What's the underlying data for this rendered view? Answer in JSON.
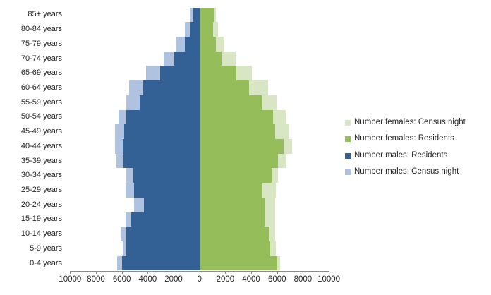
{
  "chart_data": {
    "type": "bar",
    "subtype": "population-pyramid",
    "title": "",
    "xlabel": "",
    "ylabel": "",
    "grid": false,
    "legend_position": "right",
    "axis_max_each_side": 10000,
    "x_tick_labels": [
      "10000",
      "8000",
      "6000",
      "4000",
      "2000",
      "0",
      "2000",
      "4000",
      "6000",
      "8000",
      "10000"
    ],
    "x_tick_values": [
      -10000,
      -8000,
      -6000,
      -4000,
      -2000,
      0,
      2000,
      4000,
      6000,
      8000,
      10000
    ],
    "categories_top_to_bottom": [
      "85+ years",
      "80-84 years",
      "75-79 years",
      "70-74 years",
      "65-69 years",
      "60-64 years",
      "55-59 years",
      "50-54 years",
      "45-49 years",
      "40-44 years",
      "35-39 years",
      "30-34 years",
      "25-29 years",
      "20-24 years",
      "15-19 years",
      "10-14 years",
      "5-9 years",
      "0-4 years"
    ],
    "series": [
      {
        "name": "Number females: Census night",
        "side": "right",
        "layer": "back",
        "color": "#D9E6C3",
        "values": [
          1250,
          1400,
          1850,
          2750,
          4000,
          5300,
          5950,
          6650,
          6850,
          7150,
          6700,
          6050,
          5900,
          5850,
          5800,
          5850,
          5900,
          6200
        ]
      },
      {
        "name": "Number females: Residents",
        "side": "right",
        "layer": "front",
        "color": "#95BD5A",
        "values": [
          1150,
          1050,
          1250,
          1700,
          2800,
          3800,
          4800,
          5650,
          5850,
          6500,
          6050,
          5550,
          4850,
          5000,
          5000,
          5400,
          5450,
          6000
        ]
      },
      {
        "name": "Number males: Residents",
        "side": "left",
        "layer": "front",
        "color": "#336095",
        "values": [
          500,
          750,
          1150,
          1950,
          3050,
          4350,
          4600,
          5650,
          5800,
          5900,
          5850,
          5100,
          5050,
          4300,
          5250,
          5650,
          5650,
          6000
        ]
      },
      {
        "name": "Number males: Census night",
        "side": "left",
        "layer": "back",
        "color": "#AFC3E1",
        "values": [
          750,
          1150,
          1850,
          2750,
          4150,
          5450,
          5650,
          6250,
          6500,
          6500,
          6400,
          5650,
          5700,
          5050,
          5700,
          6100,
          5950,
          6350
        ]
      }
    ],
    "legend_items_top_to_bottom": [
      "Number females: Census night",
      "Number females: Residents",
      "Number males: Residents",
      "Number males: Census night"
    ]
  },
  "colors": {
    "axis_line": "#8C8C8C",
    "label_text": "#262626",
    "background": "#FFFFFF"
  }
}
